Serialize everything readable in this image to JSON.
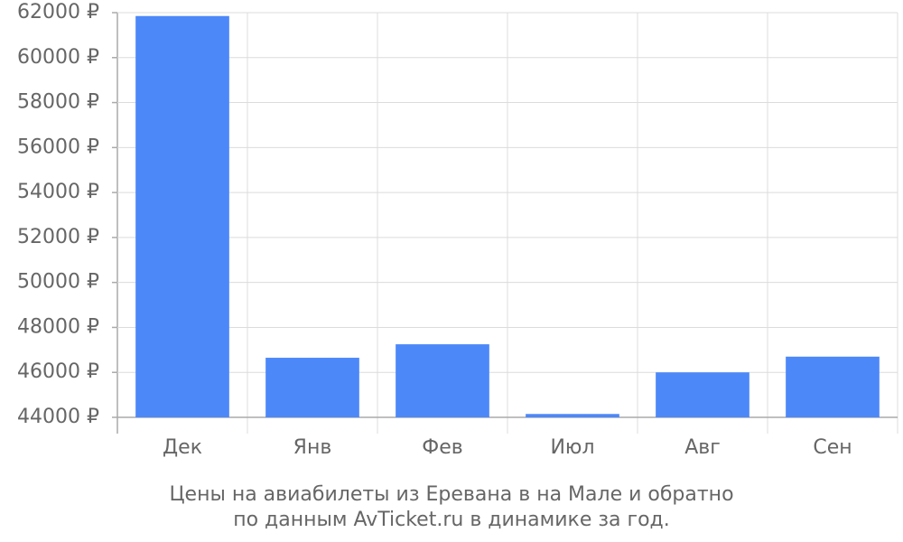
{
  "chart_data": {
    "type": "bar",
    "title": "Цены на авиабилеты из Еревана в на Мале и обратно",
    "subtitle": "по данным AvTicket.ru в динамике за год.",
    "categories": [
      "Дек",
      "Янв",
      "Фев",
      "Июл",
      "Авг",
      "Сен"
    ],
    "values": [
      61850,
      46650,
      47250,
      44150,
      46000,
      46700
    ],
    "color": "#4d88f9",
    "ylim": [
      44000,
      62000
    ],
    "yticks": [
      {
        "value": 44000,
        "label": "44000 ₽"
      },
      {
        "value": 46000,
        "label": "46000 ₽"
      },
      {
        "value": 48000,
        "label": "48000 ₽"
      },
      {
        "value": 50000,
        "label": "50000 ₽"
      },
      {
        "value": 52000,
        "label": "52000 ₽"
      },
      {
        "value": 54000,
        "label": "54000 ₽"
      },
      {
        "value": 56000,
        "label": "56000 ₽"
      },
      {
        "value": 58000,
        "label": "58000 ₽"
      },
      {
        "value": 60000,
        "label": "60000 ₽"
      },
      {
        "value": 62000,
        "label": "62000 ₽"
      }
    ],
    "grid": true
  }
}
